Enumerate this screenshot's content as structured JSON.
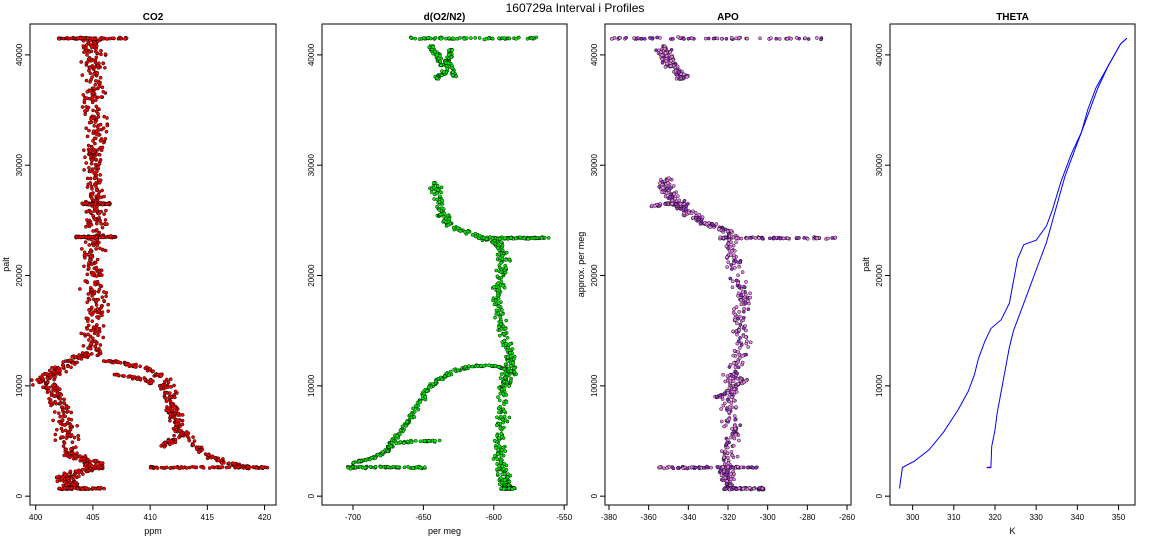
{
  "figure_title": "160729a   Interval i Profiles",
  "colors": {
    "co2_fill": "#ff0000",
    "do2n2_fill": "#00ee00",
    "apo_fill": "#ee82ee",
    "apo_dark": "#9932cc",
    "theta_line": "#0000ff",
    "theta_dark": "#5b00c8",
    "outline": "#000000"
  },
  "chart_data": [
    {
      "type": "scatter",
      "title": "CO2",
      "xlabel": "ppm",
      "ylabel": "palt",
      "xlim": [
        399.5,
        421
      ],
      "ylim": [
        -800,
        42800
      ],
      "xticks": [
        400,
        405,
        410,
        415,
        420
      ],
      "yticks": [
        0,
        10000,
        20000,
        30000,
        40000
      ],
      "path": [
        [
          403.5,
          700
        ],
        [
          402.5,
          1500
        ],
        [
          403.5,
          2200
        ],
        [
          405.5,
          2600
        ],
        [
          404.5,
          3200
        ],
        [
          403.0,
          4000
        ],
        [
          402.8,
          6000
        ],
        [
          402.2,
          8000
        ],
        [
          401.5,
          9500
        ],
        [
          400.5,
          10500
        ],
        [
          401.5,
          11200
        ],
        [
          403.0,
          12300
        ],
        [
          405.0,
          13000
        ],
        [
          405.0,
          15000
        ],
        [
          405.5,
          17000
        ],
        [
          405.0,
          19000
        ],
        [
          405.2,
          21000
        ],
        [
          405.0,
          23000
        ],
        [
          405.5,
          25000
        ],
        [
          405.0,
          27000
        ],
        [
          405.2,
          29000
        ],
        [
          405.0,
          31000
        ],
        [
          405.3,
          33000
        ],
        [
          405.0,
          35000
        ],
        [
          405.2,
          37000
        ],
        [
          405.0,
          39000
        ],
        [
          405.0,
          40500
        ],
        [
          405.0,
          41500
        ]
      ],
      "branches": [
        [
          [
            406.0,
            12300
          ],
          [
            408.0,
            12000
          ],
          [
            410.0,
            11500
          ],
          [
            411.5,
            10500
          ],
          [
            412.0,
            9000
          ],
          [
            412.0,
            7500
          ],
          [
            412.5,
            6000
          ],
          [
            413.5,
            5000
          ],
          [
            414.5,
            4000
          ],
          [
            416.0,
            3200
          ],
          [
            418.0,
            2700
          ],
          [
            420.0,
            2600
          ]
        ],
        [
          [
            407.0,
            11000
          ],
          [
            409.0,
            10700
          ],
          [
            411.0,
            10000
          ],
          [
            412.0,
            8000
          ],
          [
            412.5,
            6500
          ],
          [
            412.0,
            5000
          ],
          [
            411.0,
            4500
          ]
        ]
      ],
      "bands": [
        {
          "y": 41500,
          "x": [
            402.0,
            408.0
          ]
        },
        {
          "y": 26500,
          "x": [
            404.0,
            406.5
          ]
        },
        {
          "y": 23500,
          "x": [
            403.5,
            407.0
          ]
        },
        {
          "y": 2600,
          "x": [
            410.0,
            420.0
          ]
        },
        {
          "y": 700,
          "x": [
            402.0,
            406.0
          ]
        }
      ]
    },
    {
      "type": "scatter",
      "title": "d(O2/N2)",
      "xlabel": "per meg",
      "ylabel": "",
      "xlim": [
        -722,
        -548
      ],
      "ylim": [
        -800,
        42800
      ],
      "xticks": [
        -700,
        -650,
        -600,
        -550
      ],
      "yticks": [
        0,
        10000,
        20000,
        30000,
        40000
      ],
      "path": [
        [
          -590,
          700
        ],
        [
          -592,
          1500
        ],
        [
          -595,
          2500
        ],
        [
          -596,
          4000
        ],
        [
          -595,
          6000
        ],
        [
          -594,
          8000
        ],
        [
          -593,
          10000
        ],
        [
          -590,
          11000
        ],
        [
          -588,
          12500
        ],
        [
          -592,
          14000
        ],
        [
          -595,
          16000
        ],
        [
          -598,
          18000
        ],
        [
          -595,
          20000
        ],
        [
          -592,
          21500
        ],
        [
          -598,
          23000
        ],
        [
          -610,
          23500
        ],
        [
          -630,
          24500
        ],
        [
          -637,
          25500
        ],
        [
          -640,
          27000
        ],
        [
          -642,
          28500
        ]
      ],
      "branches": [
        [
          [
            -585,
            11000
          ],
          [
            -590,
            11500
          ],
          [
            -600,
            11800
          ],
          [
            -615,
            11800
          ],
          [
            -630,
            11300
          ],
          [
            -640,
            10500
          ],
          [
            -648,
            9500
          ],
          [
            -652,
            8500
          ],
          [
            -660,
            7000
          ],
          [
            -665,
            6000
          ],
          [
            -672,
            5000
          ],
          [
            -675,
            4200
          ],
          [
            -680,
            3800
          ],
          [
            -690,
            3300
          ],
          [
            -700,
            3000
          ]
        ],
        [
          [
            -640,
            5000
          ],
          [
            -655,
            5000
          ],
          [
            -668,
            4800
          ]
        ],
        [
          [
            -630,
            40500
          ],
          [
            -632,
            39500
          ],
          [
            -635,
            38500
          ],
          [
            -640,
            37800
          ]
        ],
        [
          [
            -645,
            40800
          ],
          [
            -640,
            40000
          ],
          [
            -638,
            39000
          ]
        ],
        [
          [
            -635,
            39500
          ],
          [
            -630,
            39000
          ],
          [
            -628,
            38000
          ]
        ]
      ],
      "bands": [
        {
          "y": 41500,
          "x": [
            -660,
            -568
          ]
        },
        {
          "y": 23400,
          "x": [
            -610,
            -560
          ]
        },
        {
          "y": 2600,
          "x": [
            -705,
            -648
          ]
        },
        {
          "y": 700,
          "x": [
            -595,
            -585
          ]
        }
      ]
    },
    {
      "type": "scatter",
      "title": "APO",
      "xlabel": "",
      "ylabel": "approx. per meg",
      "xlim": [
        -382,
        -258
      ],
      "ylim": [
        -800,
        42800
      ],
      "xticks": [
        -380,
        -360,
        -340,
        -320,
        -300,
        -280,
        -260
      ],
      "yticks": [
        0,
        10000,
        20000,
        30000,
        40000
      ],
      "path": [
        [
          -318,
          700
        ],
        [
          -320,
          1500
        ],
        [
          -322,
          2500
        ],
        [
          -320,
          4000
        ],
        [
          -318,
          6000
        ],
        [
          -320,
          8000
        ],
        [
          -318,
          10000
        ],
        [
          -315,
          12000
        ],
        [
          -312,
          14000
        ],
        [
          -315,
          16000
        ],
        [
          -312,
          18000
        ],
        [
          -315,
          20000
        ],
        [
          -318,
          22000
        ],
        [
          -320,
          24000
        ],
        [
          -328,
          24500
        ],
        [
          -335,
          25200
        ],
        [
          -342,
          26000
        ],
        [
          -348,
          27000
        ],
        [
          -352,
          27800
        ],
        [
          -350,
          28800
        ]
      ],
      "branches": [
        [
          [
            -340,
            26500
          ],
          [
            -350,
            26500
          ],
          [
            -358,
            26300
          ]
        ],
        [
          [
            -352,
            40800
          ],
          [
            -350,
            40000
          ],
          [
            -348,
            39200
          ],
          [
            -345,
            38500
          ],
          [
            -342,
            38000
          ],
          [
            -345,
            37800
          ]
        ],
        [
          [
            -356,
            40500
          ],
          [
            -352,
            39800
          ],
          [
            -350,
            38800
          ]
        ],
        [
          [
            -320,
            11000
          ],
          [
            -312,
            10500
          ],
          [
            -318,
            9500
          ],
          [
            -325,
            9000
          ]
        ]
      ],
      "bands": [
        {
          "y": 41500,
          "x": [
            -380,
            -272
          ]
        },
        {
          "y": 23400,
          "x": [
            -325,
            -265
          ]
        },
        {
          "y": 2600,
          "x": [
            -355,
            -305
          ]
        },
        {
          "y": 700,
          "x": [
            -322,
            -300
          ]
        }
      ]
    },
    {
      "type": "line",
      "title": "THETA",
      "xlabel": "K",
      "ylabel": "palt",
      "xlim": [
        294.5,
        354
      ],
      "ylim": [
        -800,
        42800
      ],
      "xticks": [
        300,
        310,
        320,
        330,
        340,
        350
      ],
      "yticks": [
        0,
        10000,
        20000,
        30000,
        40000
      ],
      "series": [
        {
          "values": [
            [
              296.8,
              700
            ],
            [
              297.5,
              2600
            ],
            [
              300.5,
              3200
            ],
            [
              304.0,
              4200
            ],
            [
              307.5,
              5800
            ],
            [
              311.0,
              7800
            ],
            [
              313.5,
              9500
            ],
            [
              315.0,
              11000
            ],
            [
              316.0,
              12500
            ],
            [
              317.5,
              14000
            ],
            [
              319.0,
              15200
            ],
            [
              321.5,
              16000
            ],
            [
              323.5,
              17500
            ],
            [
              324.5,
              19500
            ],
            [
              325.5,
              21500
            ],
            [
              327.0,
              22800
            ],
            [
              330.0,
              23200
            ],
            [
              332.5,
              24500
            ],
            [
              334.0,
              26000
            ],
            [
              336.0,
              28500
            ],
            [
              338.5,
              31000
            ],
            [
              341.0,
              33000
            ],
            [
              343.0,
              35000
            ],
            [
              345.0,
              37000
            ],
            [
              347.5,
              39000
            ],
            [
              350.5,
              41000
            ],
            [
              352.0,
              41500
            ]
          ]
        },
        {
          "values": [
            [
              318.0,
              2600
            ],
            [
              319.0,
              2600
            ],
            [
              319.2,
              4500
            ],
            [
              320.0,
              6000
            ],
            [
              320.5,
              7500
            ],
            [
              321.5,
              9500
            ],
            [
              322.5,
              11500
            ],
            [
              323.5,
              13500
            ],
            [
              324.5,
              15000
            ],
            [
              326.5,
              17000
            ],
            [
              328.5,
              19000
            ],
            [
              330.5,
              21000
            ],
            [
              332.5,
              23000
            ],
            [
              334.0,
              25000
            ],
            [
              335.5,
              27000
            ],
            [
              337.0,
              29000
            ],
            [
              339.0,
              31000
            ],
            [
              341.0,
              33000
            ],
            [
              342.5,
              35000
            ],
            [
              344.5,
              37000
            ],
            [
              347.5,
              39000
            ],
            [
              350.5,
              41000
            ],
            [
              352.0,
              41500
            ]
          ]
        }
      ]
    }
  ]
}
